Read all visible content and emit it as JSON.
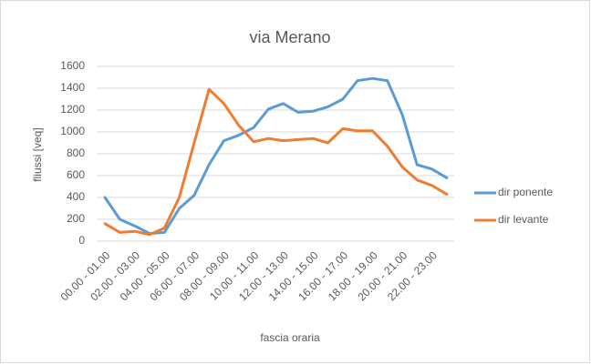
{
  "chart_data": {
    "type": "line",
    "title": "via Merano",
    "x_label": "fascia oraria",
    "y_label": "fliussi [veq]",
    "categories": [
      "00.00 - 01.00",
      null,
      "02.00 - 03.00",
      null,
      "04.00 - 05.00",
      null,
      "06.00 - 07.00",
      null,
      "08.00 - 09.00",
      null,
      "10.00 - 11.00",
      null,
      "12.00 - 13.00",
      null,
      "14.00 - 15.00",
      null,
      "16.00 - 17.00",
      null,
      "18.00 - 19.00",
      null,
      "20.00 - 21.00",
      null,
      "22.00 - 23.00",
      null
    ],
    "series": [
      {
        "name": "dir ponente",
        "color": "#5b9bd5",
        "values": [
          400,
          200,
          140,
          70,
          80,
          300,
          420,
          700,
          920,
          970,
          1040,
          1210,
          1260,
          1180,
          1190,
          1230,
          1300,
          1470,
          1490,
          1470,
          1160,
          700,
          660,
          580
        ]
      },
      {
        "name": "dir levante",
        "color": "#ed7d31",
        "values": [
          160,
          80,
          90,
          60,
          120,
          400,
          900,
          1390,
          1260,
          1060,
          910,
          940,
          920,
          930,
          940,
          900,
          1030,
          1010,
          1010,
          870,
          680,
          560,
          510,
          430
        ]
      }
    ],
    "ylim": [
      0,
      1600
    ],
    "yticks": [
      0,
      200,
      400,
      600,
      800,
      1000,
      1200,
      1400,
      1600
    ],
    "grid": true,
    "legend": "right"
  }
}
